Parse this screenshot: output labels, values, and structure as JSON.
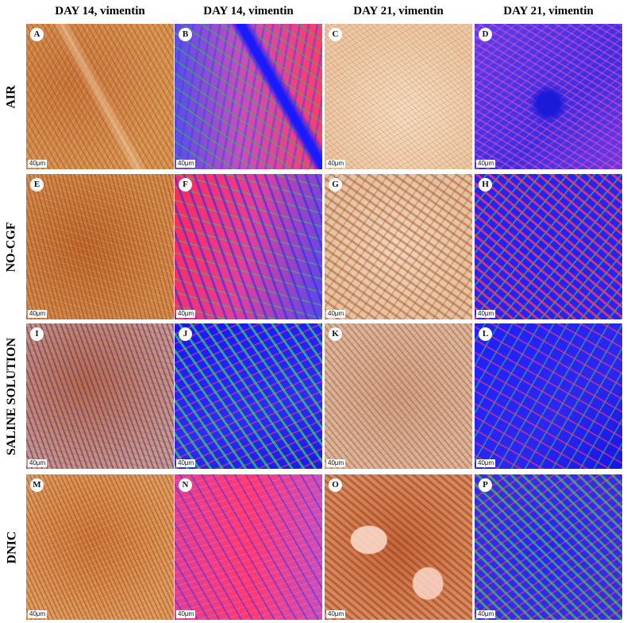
{
  "column_headers": [
    "DAY 14, vimentin",
    "DAY 14, vimentin",
    "DAY 21, vimentin",
    "DAY 21, vimentin"
  ],
  "row_labels": [
    "AIR",
    "NO-CGF",
    "SALINE SOLUTION",
    "DNIC"
  ],
  "panels": [
    {
      "letter": "A",
      "scale": "40μm"
    },
    {
      "letter": "B",
      "scale": "40μm"
    },
    {
      "letter": "C",
      "scale": "40μm"
    },
    {
      "letter": "D",
      "scale": "40μm"
    },
    {
      "letter": "E",
      "scale": "40μm"
    },
    {
      "letter": "F",
      "scale": "40μm"
    },
    {
      "letter": "G",
      "scale": "40μm"
    },
    {
      "letter": "H",
      "scale": "40μm"
    },
    {
      "letter": "I",
      "scale": "40μm"
    },
    {
      "letter": "J",
      "scale": "40μm"
    },
    {
      "letter": "K",
      "scale": "40μm"
    },
    {
      "letter": "L",
      "scale": "40μm"
    },
    {
      "letter": "M",
      "scale": "40μm"
    },
    {
      "letter": "N",
      "scale": "40μm"
    },
    {
      "letter": "O",
      "scale": "40μm"
    },
    {
      "letter": "P",
      "scale": "40μm"
    }
  ]
}
